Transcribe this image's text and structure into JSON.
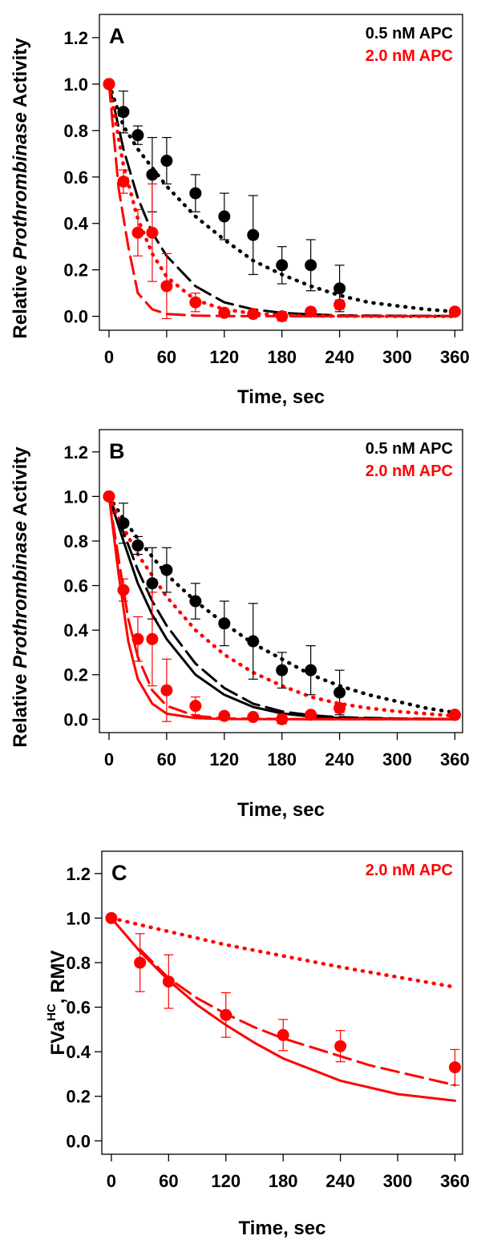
{
  "chart_data": [
    {
      "type": "line",
      "panel_label": "A",
      "xlabel": "Time, sec",
      "ylabel_parts": [
        "Relative ",
        "Prothrombinase",
        " Activity"
      ],
      "xlim": [
        -10,
        368
      ],
      "ylim": [
        -0.06,
        1.3
      ],
      "x_ticks": [
        0,
        60,
        120,
        180,
        240,
        300,
        360
      ],
      "y_ticks": [
        0.0,
        0.2,
        0.4,
        0.6,
        0.8,
        1.0,
        1.2
      ],
      "y_tick_labels": [
        "0.0",
        "0.2",
        "0.4",
        "0.6",
        "0.8",
        "1.0",
        "1.2"
      ],
      "legend": [
        {
          "text": "0.5 nM APC",
          "color": "#000000"
        },
        {
          "text": "2.0 nM APC",
          "color": "#ff0000"
        }
      ],
      "series": [
        {
          "color": "#000000",
          "kind": "points",
          "x": [
            0,
            15,
            30,
            45,
            60,
            90,
            120,
            150,
            180,
            210,
            240,
            360
          ],
          "y": [
            1.0,
            0.88,
            0.78,
            0.61,
            0.67,
            0.53,
            0.43,
            0.35,
            0.22,
            0.22,
            0.12,
            0.02
          ],
          "err": [
            0.0,
            0.09,
            0.04,
            0.16,
            0.1,
            0.08,
            0.1,
            0.17,
            0.08,
            0.11,
            0.1,
            0.01
          ]
        },
        {
          "color": "#ff0000",
          "kind": "points",
          "x": [
            0,
            15,
            30,
            45,
            60,
            90,
            120,
            150,
            180,
            210,
            240,
            360
          ],
          "y": [
            1.0,
            0.58,
            0.36,
            0.36,
            0.13,
            0.06,
            0.015,
            0.01,
            0.0,
            0.02,
            0.05,
            0.02
          ],
          "err": [
            0.0,
            0.05,
            0.1,
            0.21,
            0.14,
            0.04,
            0.01,
            0.01,
            0.02,
            0.01,
            0.02,
            0.01
          ]
        },
        {
          "color": "#000000",
          "kind": "dotted",
          "x": [
            0,
            15,
            30,
            60,
            90,
            120,
            150,
            180,
            210,
            240,
            270,
            300,
            330,
            360
          ],
          "y": [
            1.0,
            0.82,
            0.72,
            0.56,
            0.43,
            0.33,
            0.24,
            0.18,
            0.13,
            0.09,
            0.06,
            0.045,
            0.03,
            0.02
          ]
        },
        {
          "color": "#000000",
          "kind": "dashed",
          "x": [
            0,
            15,
            30,
            45,
            60,
            90,
            120,
            150,
            180,
            210,
            240,
            300,
            360
          ],
          "y": [
            1.0,
            0.72,
            0.51,
            0.36,
            0.26,
            0.13,
            0.06,
            0.03,
            0.015,
            0.008,
            0.004,
            0.002,
            0.001
          ]
        },
        {
          "color": "#ff0000",
          "kind": "dotted",
          "x": [
            0,
            15,
            30,
            45,
            60,
            90,
            120,
            150,
            180,
            240,
            300,
            360
          ],
          "y": [
            1.0,
            0.65,
            0.42,
            0.27,
            0.17,
            0.07,
            0.03,
            0.012,
            0.005,
            0.001,
            0.0,
            0.0
          ]
        },
        {
          "color": "#ff0000",
          "kind": "dashed",
          "x": [
            0,
            10,
            20,
            30,
            45,
            60,
            90,
            120,
            180,
            240,
            360
          ],
          "y": [
            1.0,
            0.55,
            0.3,
            0.1,
            0.03,
            0.01,
            0.003,
            0.001,
            0.0,
            0.0,
            0.0
          ]
        }
      ]
    },
    {
      "type": "line",
      "panel_label": "B",
      "xlabel": "Time, sec",
      "ylabel_parts": [
        "Relative ",
        "Prothrombinase",
        " Activity"
      ],
      "xlim": [
        -10,
        368
      ],
      "ylim": [
        -0.06,
        1.3
      ],
      "x_ticks": [
        0,
        60,
        120,
        180,
        240,
        300,
        360
      ],
      "y_ticks": [
        0.0,
        0.2,
        0.4,
        0.6,
        0.8,
        1.0,
        1.2
      ],
      "y_tick_labels": [
        "0.0",
        "0.2",
        "0.4",
        "0.6",
        "0.8",
        "1.0",
        "1.2"
      ],
      "legend": [
        {
          "text": "0.5 nM APC",
          "color": "#000000"
        },
        {
          "text": "2.0 nM APC",
          "color": "#ff0000"
        }
      ],
      "series": [
        {
          "color": "#000000",
          "kind": "points",
          "x": [
            0,
            15,
            30,
            45,
            60,
            90,
            120,
            150,
            180,
            210,
            240,
            360
          ],
          "y": [
            1.0,
            0.88,
            0.78,
            0.61,
            0.67,
            0.53,
            0.43,
            0.35,
            0.22,
            0.22,
            0.12,
            0.02
          ],
          "err": [
            0.0,
            0.09,
            0.04,
            0.16,
            0.1,
            0.08,
            0.1,
            0.17,
            0.08,
            0.11,
            0.1,
            0.01
          ]
        },
        {
          "color": "#ff0000",
          "kind": "points",
          "x": [
            0,
            15,
            30,
            45,
            60,
            90,
            120,
            150,
            180,
            210,
            240,
            360
          ],
          "y": [
            1.0,
            0.58,
            0.36,
            0.36,
            0.13,
            0.06,
            0.015,
            0.01,
            0.0,
            0.02,
            0.05,
            0.02
          ],
          "err": [
            0.0,
            0.05,
            0.1,
            0.21,
            0.14,
            0.04,
            0.01,
            0.01,
            0.02,
            0.01,
            0.02,
            0.01
          ]
        },
        {
          "color": "#000000",
          "kind": "dotted",
          "x": [
            0,
            15,
            30,
            60,
            90,
            120,
            150,
            180,
            210,
            240,
            270,
            300,
            330,
            360
          ],
          "y": [
            1.0,
            0.9,
            0.81,
            0.65,
            0.53,
            0.43,
            0.34,
            0.27,
            0.2,
            0.15,
            0.11,
            0.08,
            0.05,
            0.03
          ]
        },
        {
          "color": "#000000",
          "kind": "dashed",
          "x": [
            0,
            15,
            30,
            45,
            60,
            90,
            120,
            150,
            180,
            210,
            240,
            300,
            360
          ],
          "y": [
            1.0,
            0.84,
            0.67,
            0.53,
            0.42,
            0.25,
            0.14,
            0.07,
            0.035,
            0.018,
            0.009,
            0.003,
            0.001
          ]
        },
        {
          "color": "#000000",
          "kind": "solid",
          "x": [
            0,
            15,
            30,
            45,
            60,
            90,
            120,
            150,
            180,
            210,
            240,
            300,
            360
          ],
          "y": [
            1.0,
            0.8,
            0.61,
            0.47,
            0.36,
            0.2,
            0.11,
            0.055,
            0.026,
            0.012,
            0.006,
            0.002,
            0.0
          ]
        },
        {
          "color": "#ff0000",
          "kind": "dotted",
          "x": [
            0,
            15,
            30,
            60,
            90,
            120,
            150,
            180,
            210,
            240,
            270,
            300,
            330,
            360
          ],
          "y": [
            1.0,
            0.86,
            0.74,
            0.55,
            0.4,
            0.29,
            0.21,
            0.15,
            0.1,
            0.07,
            0.05,
            0.035,
            0.025,
            0.015
          ]
        },
        {
          "color": "#ff0000",
          "kind": "dashed",
          "x": [
            0,
            10,
            20,
            30,
            45,
            60,
            90,
            120,
            180,
            240,
            360
          ],
          "y": [
            1.0,
            0.72,
            0.45,
            0.28,
            0.13,
            0.06,
            0.015,
            0.004,
            0.001,
            0.0,
            0.0
          ]
        },
        {
          "color": "#ff0000",
          "kind": "solid",
          "x": [
            0,
            10,
            20,
            30,
            45,
            60,
            90,
            120,
            180,
            240,
            360
          ],
          "y": [
            1.0,
            0.65,
            0.35,
            0.18,
            0.07,
            0.025,
            0.005,
            0.001,
            0.0,
            0.0,
            0.0
          ]
        }
      ]
    },
    {
      "type": "line",
      "panel_label": "C",
      "xlabel": "Time, sec",
      "ylabel_main": "FVa",
      "ylabel_sup": "HC",
      "ylabel_rest": ", RMV",
      "xlim": [
        -10,
        368
      ],
      "ylim": [
        -0.06,
        1.3
      ],
      "x_ticks": [
        0,
        60,
        120,
        180,
        240,
        300,
        360
      ],
      "y_ticks": [
        0.0,
        0.2,
        0.4,
        0.6,
        0.8,
        1.0,
        1.2
      ],
      "y_tick_labels": [
        "0.0",
        "0.2",
        "0.4",
        "0.6",
        "0.8",
        "1.0",
        "1.2"
      ],
      "legend": [
        {
          "text": "2.0 nM APC",
          "color": "#ff0000"
        }
      ],
      "series": [
        {
          "color": "#ff0000",
          "kind": "points",
          "x": [
            0,
            30,
            60,
            120,
            180,
            240,
            360
          ],
          "y": [
            1.0,
            0.8,
            0.715,
            0.565,
            0.475,
            0.425,
            0.33
          ],
          "err": [
            0.0,
            0.13,
            0.12,
            0.1,
            0.07,
            0.07,
            0.08
          ]
        },
        {
          "color": "#ff0000",
          "kind": "dotted",
          "x": [
            0,
            60,
            120,
            180,
            240,
            300,
            360
          ],
          "y": [
            1.0,
            0.94,
            0.88,
            0.83,
            0.78,
            0.735,
            0.69
          ]
        },
        {
          "color": "#ff0000",
          "kind": "dashed",
          "x": [
            30,
            60,
            90,
            120,
            150,
            180,
            210,
            240,
            270,
            300,
            330,
            360
          ],
          "y": [
            0.86,
            0.73,
            0.64,
            0.57,
            0.51,
            0.46,
            0.42,
            0.38,
            0.34,
            0.31,
            0.28,
            0.25
          ]
        },
        {
          "color": "#ff0000",
          "kind": "solid",
          "x": [
            0,
            30,
            60,
            90,
            120,
            150,
            180,
            210,
            240,
            270,
            300,
            330,
            360
          ],
          "y": [
            1.0,
            0.85,
            0.72,
            0.61,
            0.52,
            0.44,
            0.37,
            0.32,
            0.27,
            0.24,
            0.21,
            0.195,
            0.18
          ]
        }
      ]
    }
  ]
}
